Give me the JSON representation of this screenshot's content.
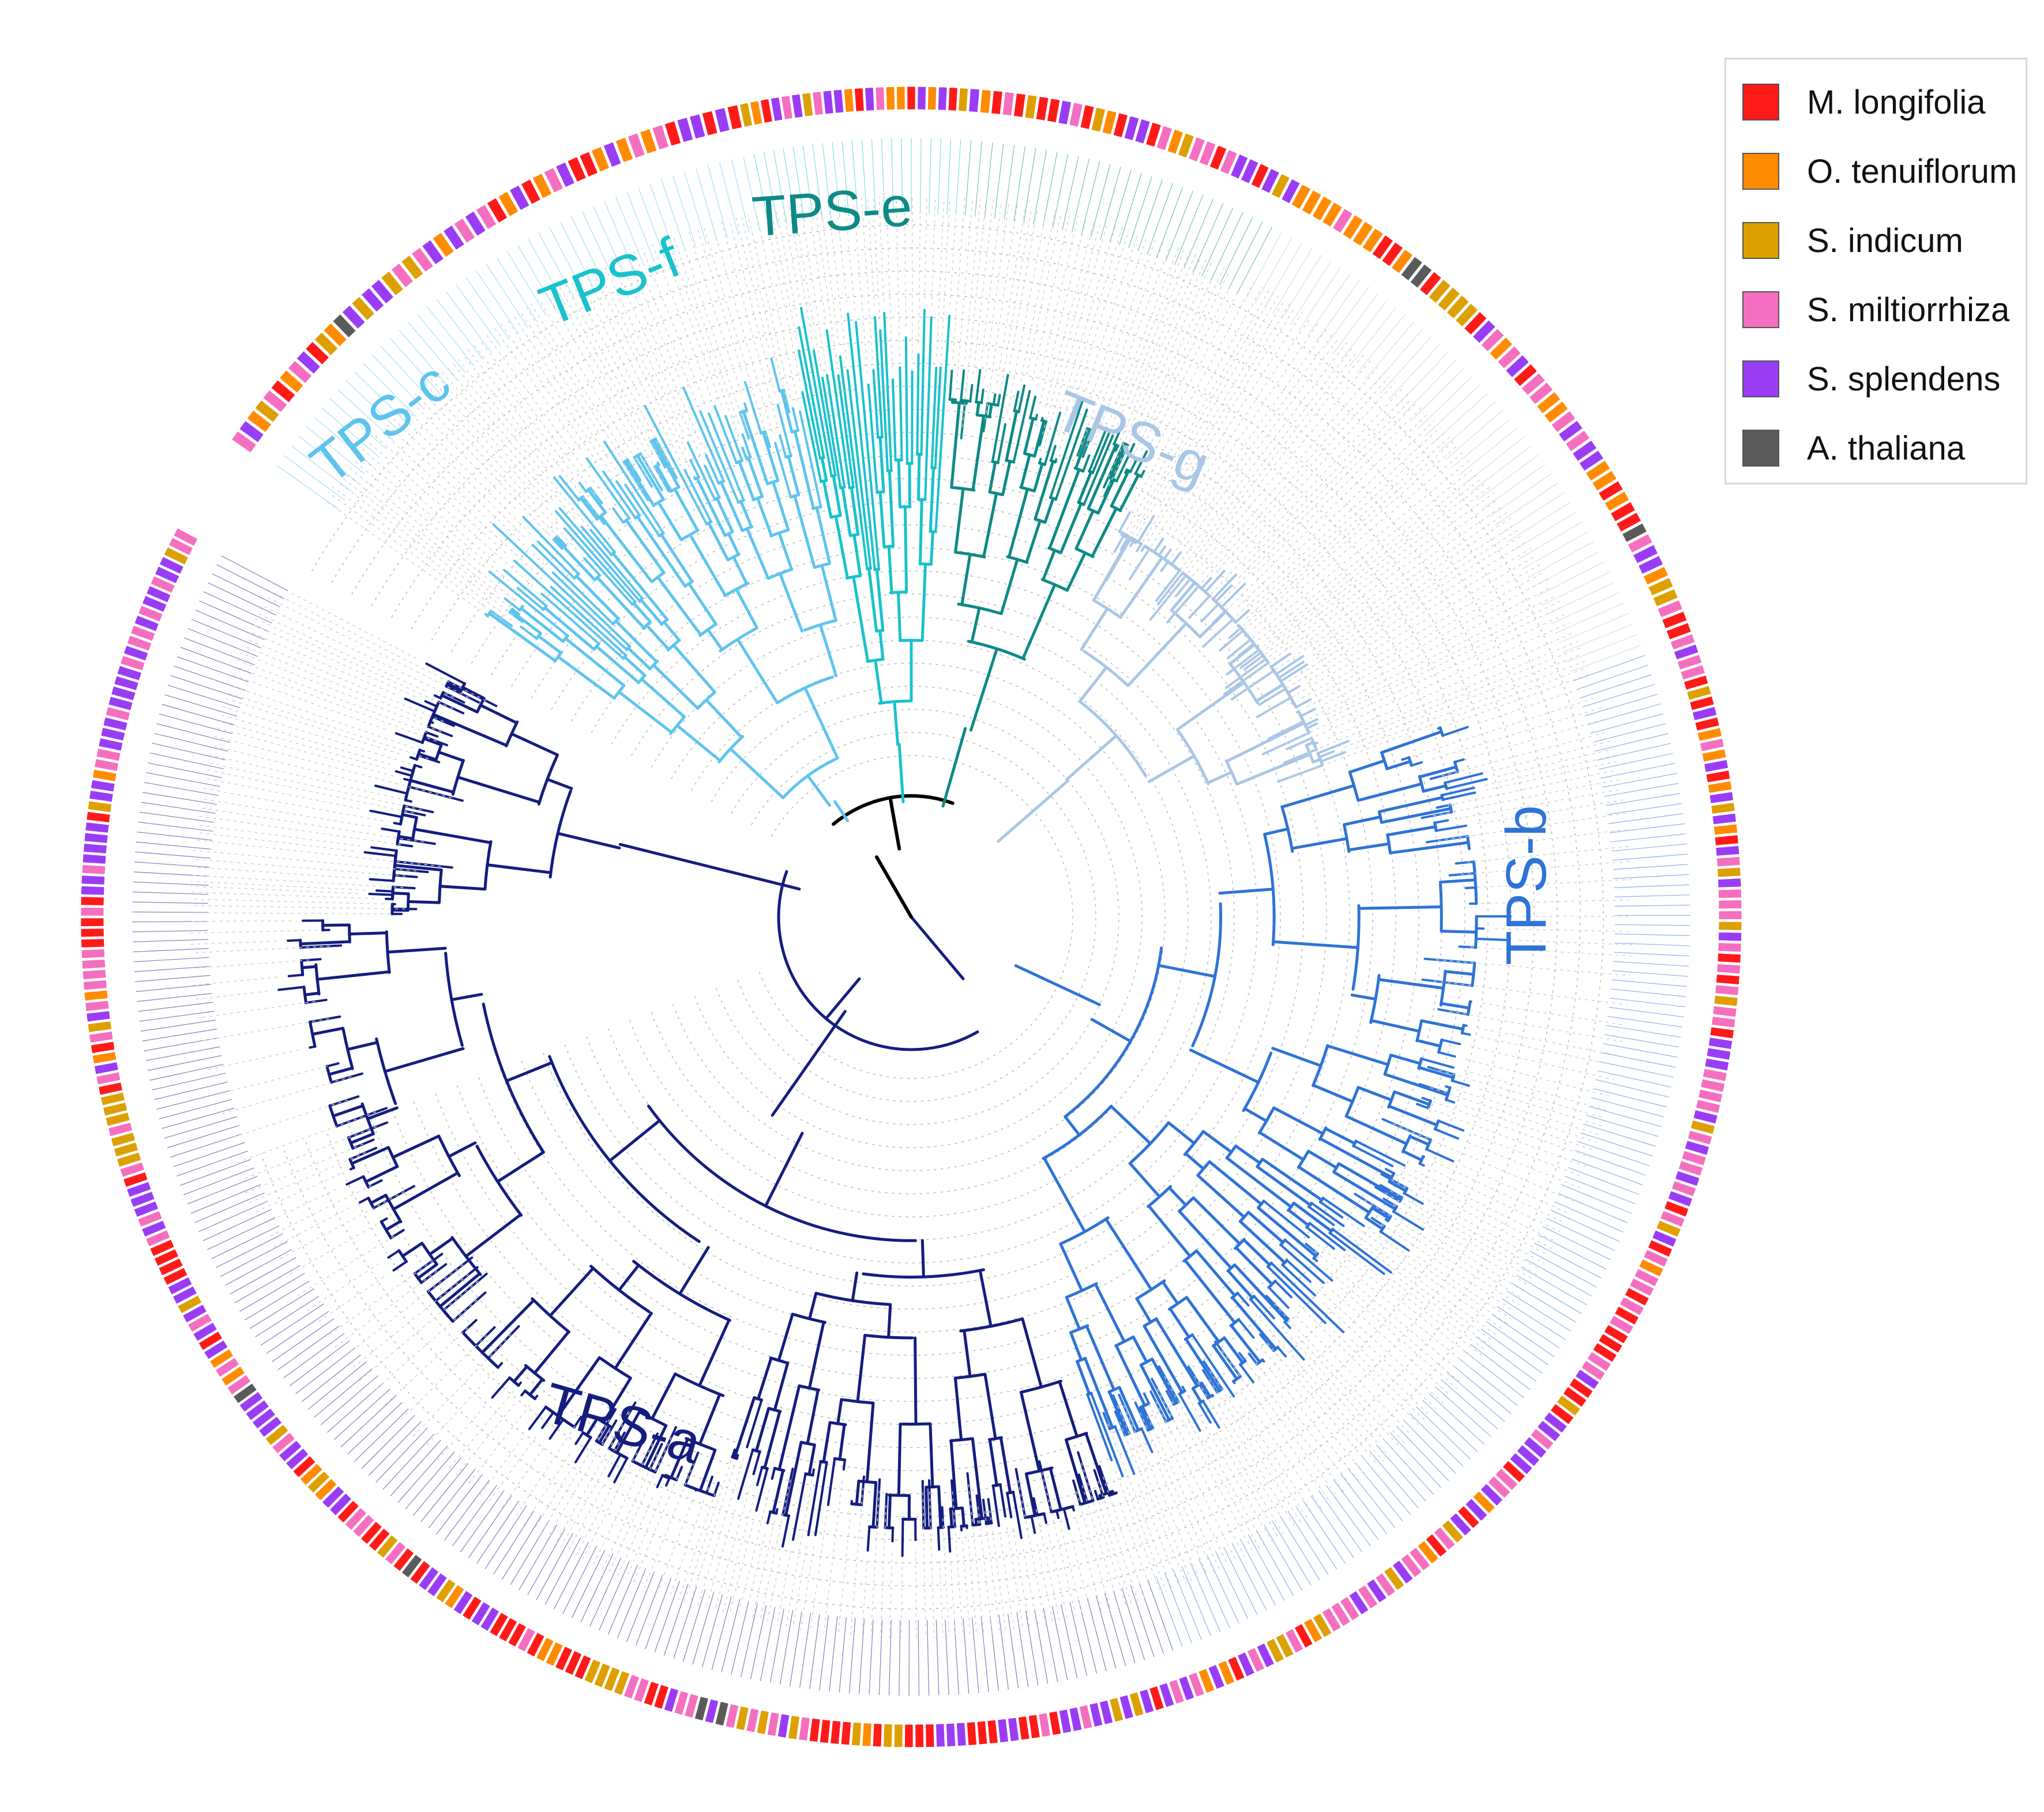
{
  "figure": {
    "type": "circular_phylogenetic_tree",
    "clades": [
      {
        "id": "a",
        "label": "TPS-a",
        "color": "#141d7e"
      },
      {
        "id": "b",
        "label": "TPS-b",
        "color": "#2e73d6"
      },
      {
        "id": "c",
        "label": "TPS-c",
        "color": "#5ec4ee"
      },
      {
        "id": "e",
        "label": "TPS-e",
        "color": "#0e8a86"
      },
      {
        "id": "f",
        "label": "TPS-f",
        "color": "#19c2cc"
      },
      {
        "id": "g",
        "label": "TPS-g",
        "color": "#a9c6e6"
      }
    ]
  },
  "legend": {
    "items": [
      {
        "label": "M. longifolia",
        "color": "#ff1a1a"
      },
      {
        "label": "O. tenuiflorum",
        "color": "#ff8c00"
      },
      {
        "label": "S. indicum",
        "color": "#dda000"
      },
      {
        "label": "S. miltiorrhiza",
        "color": "#f56fc0"
      },
      {
        "label": "S. splendens",
        "color": "#9b3cf5"
      },
      {
        "label": "A. thaliana",
        "color": "#5a5a5a"
      }
    ]
  }
}
